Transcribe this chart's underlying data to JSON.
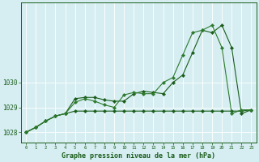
{
  "title": "Graphe pression niveau de la mer (hPa)",
  "background_color": "#d6eef2",
  "grid_color": "#b8d9e0",
  "line_color_dark": "#1a5c1a",
  "line_color_mid": "#2d7a2d",
  "xlim": [
    -0.5,
    23.5
  ],
  "ylim": [
    1027.6,
    1033.2
  ],
  "yticks": [
    1028,
    1029,
    1030
  ],
  "xticks": [
    0,
    1,
    2,
    3,
    4,
    5,
    6,
    7,
    8,
    9,
    10,
    11,
    12,
    13,
    14,
    15,
    16,
    17,
    18,
    19,
    20,
    21,
    22,
    23
  ],
  "hours": [
    0,
    1,
    2,
    3,
    4,
    5,
    6,
    7,
    8,
    9,
    10,
    11,
    12,
    13,
    14,
    15,
    16,
    17,
    18,
    19,
    20,
    21,
    22,
    23
  ],
  "series1": [
    1028.0,
    1028.2,
    1028.45,
    1028.65,
    1028.75,
    1029.35,
    1029.4,
    1029.4,
    1029.3,
    1029.25,
    1029.25,
    1029.55,
    1029.65,
    1029.6,
    1029.55,
    1030.0,
    1030.3,
    1031.2,
    1032.1,
    1032.0,
    1032.3,
    1031.4,
    1028.75,
    1028.9
  ],
  "series2": [
    1028.0,
    1028.2,
    1028.45,
    1028.65,
    1028.75,
    1028.85,
    1028.85,
    1028.85,
    1028.85,
    1028.85,
    1028.85,
    1028.85,
    1028.85,
    1028.85,
    1028.85,
    1028.85,
    1028.85,
    1028.85,
    1028.85,
    1028.85,
    1028.85,
    1028.85,
    1028.85,
    1028.9
  ],
  "series3": [
    1028.0,
    1028.2,
    1028.45,
    1028.65,
    1028.75,
    1029.2,
    1029.35,
    1029.25,
    1029.1,
    1029.0,
    1029.5,
    1029.6,
    1029.55,
    1029.55,
    1030.0,
    1030.2,
    1031.1,
    1032.0,
    1032.1,
    1032.3,
    1031.4,
    1028.75,
    1028.9,
    1028.9
  ]
}
